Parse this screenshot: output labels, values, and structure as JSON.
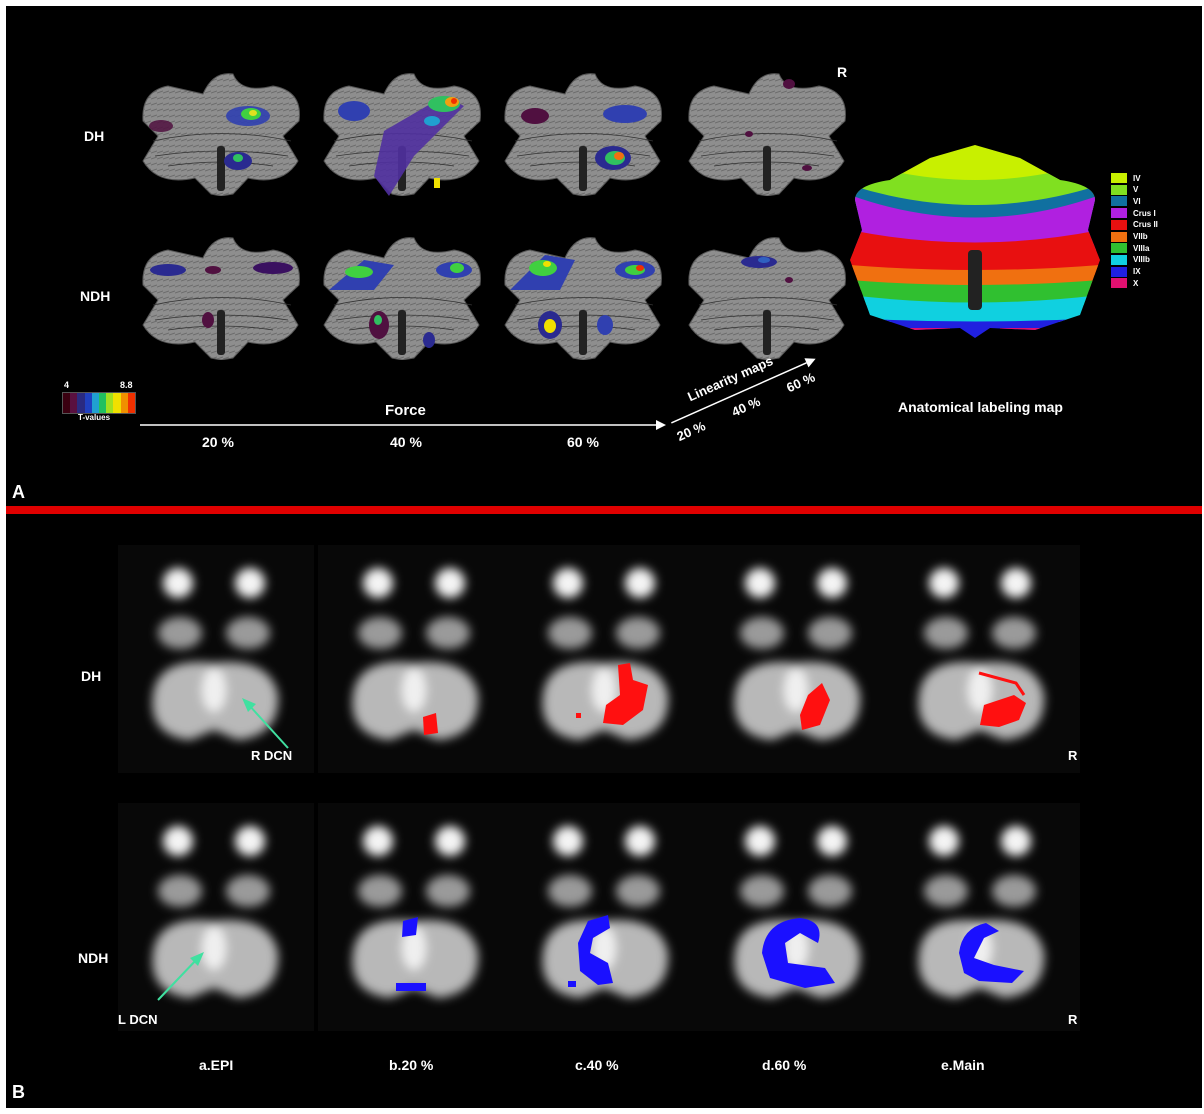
{
  "panel_a": {
    "letter": "A",
    "row_labels": [
      "DH",
      "NDH"
    ],
    "right_marker": "R",
    "colorbar": {
      "min_label": "4",
      "max_label": "8.8",
      "title": "T-values",
      "colors": [
        "#3a0010",
        "#5a1040",
        "#2a2a80",
        "#2040c0",
        "#20a0d0",
        "#20c060",
        "#a0e020",
        "#f0e000",
        "#f09000",
        "#f03000"
      ]
    },
    "force_label": "Force",
    "force_ticks": [
      "20 %",
      "40 %",
      "60 %"
    ],
    "linearity": {
      "title": "Linearity maps",
      "ticks": [
        "20 %",
        "40 %",
        "60 %"
      ]
    },
    "atlas_title": "Anatomical labeling map",
    "atlas_legend": [
      {
        "label": "IV",
        "color": "#c8f000"
      },
      {
        "label": "V",
        "color": "#80e020"
      },
      {
        "label": "VI",
        "color": "#1070a0"
      },
      {
        "label": "Crus I",
        "color": "#b020e0"
      },
      {
        "label": "Crus II",
        "color": "#e81010"
      },
      {
        "label": "VIIb",
        "color": "#f07010"
      },
      {
        "label": "VIIIa",
        "color": "#30c030"
      },
      {
        "label": "VIIIb",
        "color": "#10d0e0"
      },
      {
        "label": "IX",
        "color": "#2020e0"
      },
      {
        "label": "X",
        "color": "#e01070"
      }
    ]
  },
  "panel_b": {
    "letter": "B",
    "row_labels": [
      "DH",
      "NDH"
    ],
    "right_marker": "R",
    "annotations": [
      "R DCN",
      "L DCN"
    ],
    "column_labels": [
      "a.EPI",
      "b.20 %",
      "c.40 %",
      "d.60 %",
      "e.Main"
    ],
    "overlay_colors": {
      "DH": "#ff1010",
      "NDH": "#1a10ff"
    }
  }
}
